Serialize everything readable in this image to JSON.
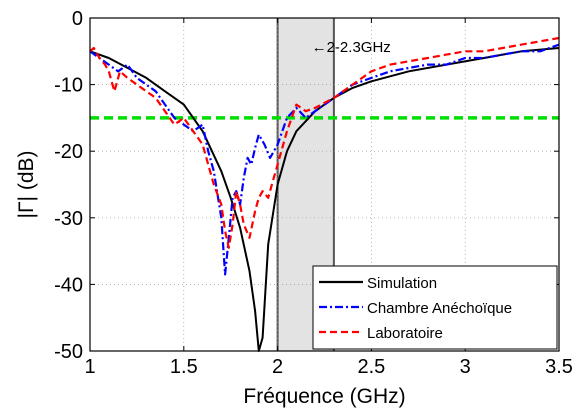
{
  "chart_data": {
    "type": "line",
    "xlabel": "Fréquence (GHz)",
    "ylabel": "|Γ| (dB)",
    "xlim": [
      1,
      3.5
    ],
    "ylim": [
      -50,
      0
    ],
    "xticks": [
      "1",
      "1.5",
      "2",
      "2.5",
      "3",
      "3.5"
    ],
    "yticks": [
      "0",
      "-10",
      "-20",
      "-30",
      "-40",
      "-50"
    ],
    "grid": true,
    "legend_position": "bottom-right",
    "band": {
      "x": [
        2.0,
        2.3
      ],
      "label": "←2-2.3GHz"
    },
    "threshold": {
      "y": -15,
      "color": "#00e000"
    },
    "series": [
      {
        "name": "Simulation",
        "color": "#000000",
        "style": "solid",
        "x": [
          1.0,
          1.1,
          1.2,
          1.3,
          1.4,
          1.5,
          1.6,
          1.7,
          1.75,
          1.8,
          1.85,
          1.88,
          1.9,
          1.92,
          1.95,
          2.0,
          2.05,
          2.1,
          2.2,
          2.3,
          2.4,
          2.5,
          2.7,
          2.9,
          3.1,
          3.3,
          3.5
        ],
        "y": [
          -5,
          -6,
          -7.5,
          -9,
          -11,
          -13,
          -17,
          -23,
          -27,
          -31.5,
          -38,
          -44,
          -50,
          -48,
          -34,
          -25,
          -20,
          -17,
          -14,
          -12,
          -10.5,
          -9.5,
          -8,
          -7,
          -6,
          -5,
          -4.5
        ]
      },
      {
        "name": "Chambre Anéchoïque",
        "color": "#0000ff",
        "style": "dashdot",
        "x": [
          1.0,
          1.05,
          1.1,
          1.15,
          1.2,
          1.25,
          1.3,
          1.35,
          1.4,
          1.45,
          1.5,
          1.55,
          1.6,
          1.63,
          1.66,
          1.7,
          1.72,
          1.74,
          1.76,
          1.78,
          1.8,
          1.82,
          1.84,
          1.86,
          1.88,
          1.9,
          1.93,
          1.96,
          2.0,
          2.05,
          2.1,
          2.15,
          2.2,
          2.25,
          2.3,
          2.35,
          2.4,
          2.5,
          2.6,
          2.7,
          2.8,
          2.9,
          3.0,
          3.1,
          3.2,
          3.3,
          3.4,
          3.5
        ],
        "y": [
          -5,
          -6,
          -7,
          -8,
          -7,
          -9,
          -10,
          -11,
          -13,
          -15,
          -16,
          -17,
          -16,
          -20,
          -23,
          -30,
          -38.5,
          -33,
          -27,
          -26,
          -28,
          -24,
          -21,
          -22,
          -19.5,
          -17.5,
          -19,
          -21,
          -19,
          -15,
          -13.5,
          -15,
          -14,
          -13,
          -12,
          -11,
          -10,
          -9,
          -8,
          -7.5,
          -7,
          -7,
          -6,
          -6,
          -5.5,
          -5,
          -5,
          -4
        ]
      },
      {
        "name": "Laboratoire",
        "color": "#ff0000",
        "style": "dashed",
        "x": [
          1.0,
          1.02,
          1.05,
          1.08,
          1.1,
          1.13,
          1.16,
          1.2,
          1.25,
          1.3,
          1.35,
          1.4,
          1.45,
          1.5,
          1.55,
          1.6,
          1.63,
          1.66,
          1.7,
          1.72,
          1.74,
          1.76,
          1.78,
          1.8,
          1.82,
          1.85,
          1.88,
          1.9,
          1.92,
          1.95,
          1.98,
          2.0,
          2.05,
          2.1,
          2.15,
          2.2,
          2.3,
          2.4,
          2.5,
          2.6,
          2.7,
          2.8,
          2.9,
          3.0,
          3.1,
          3.2,
          3.3,
          3.4,
          3.5
        ],
        "y": [
          -5,
          -4.5,
          -6,
          -7,
          -8,
          -11,
          -8,
          -9,
          -10,
          -11,
          -12,
          -14,
          -16,
          -15,
          -17,
          -19,
          -22,
          -25,
          -28,
          -32,
          -34.5,
          -31,
          -26,
          -28,
          -31,
          -33,
          -29,
          -27,
          -26,
          -27,
          -24,
          -22,
          -17,
          -13,
          -14,
          -13.5,
          -12,
          -10,
          -8,
          -7,
          -6.5,
          -6,
          -5.5,
          -5,
          -5,
          -4.5,
          -4,
          -3.5,
          -3
        ]
      }
    ]
  }
}
